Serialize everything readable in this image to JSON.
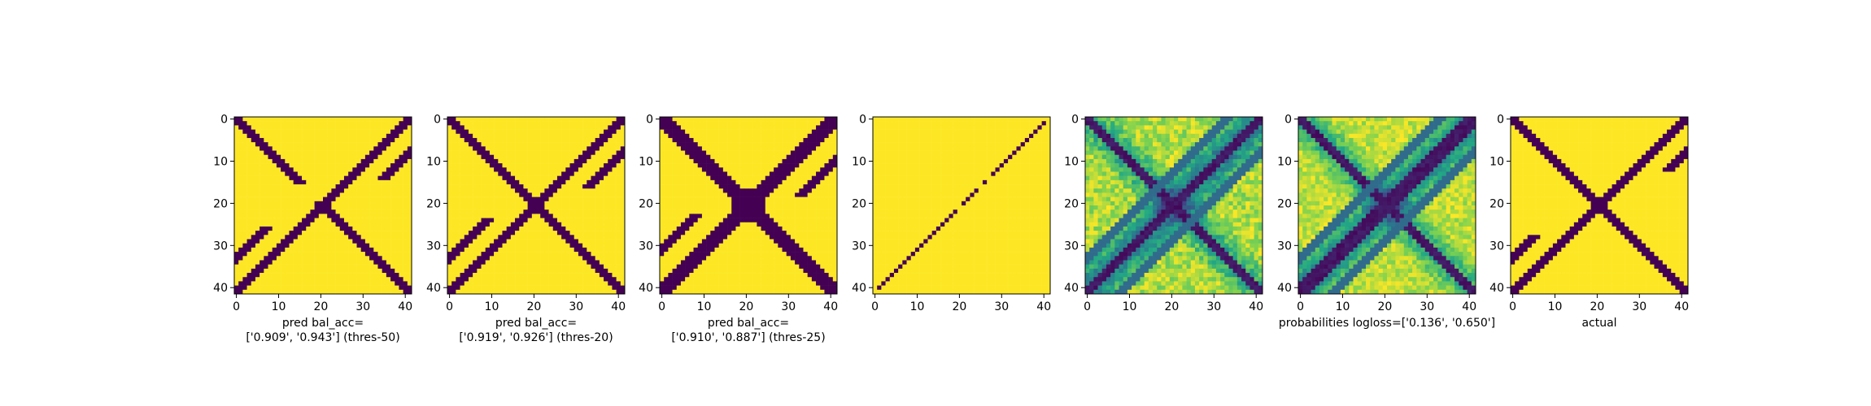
{
  "colors": {
    "low": "#440154",
    "high": "#fde725",
    "viridis": [
      "#440154",
      "#414487",
      "#2a788e",
      "#22a884",
      "#7ad151",
      "#fde725"
    ]
  },
  "chart_data": [
    {
      "type": "heatmap",
      "title": "",
      "size": 42,
      "xticks": [
        0,
        10,
        20,
        30,
        40
      ],
      "yticks": [
        0,
        10,
        20,
        30,
        40
      ],
      "xlabel_lines": [
        "pred bal_acc=",
        "['0.909', '0.943'] (thres-50)"
      ],
      "ylabel": "",
      "binary": true,
      "anti_diagonal_width": 2,
      "main_diagonal_width": 2,
      "center_blob": 1,
      "diagonal_gap": [
        16,
        19
      ],
      "extra_bands": [
        {
          "offset": 4,
          "range": [
            3,
            14
          ]
        },
        {
          "offset": -4,
          "range": [
            26,
            36
          ]
        }
      ],
      "extra_noise": 0.0
    },
    {
      "type": "heatmap",
      "title": "",
      "size": 42,
      "xticks": [
        0,
        10,
        20,
        30,
        40
      ],
      "yticks": [
        0,
        10,
        20,
        30,
        40
      ],
      "xlabel_lines": [
        "pred bal_acc=",
        "['0.919', '0.926'] (thres-20)"
      ],
      "ylabel": "",
      "binary": true,
      "anti_diagonal_width": 2,
      "main_diagonal_width": 2,
      "center_blob": 2,
      "diagonal_gap": [],
      "extra_bands": [
        {
          "offset": 4,
          "range": [
            0,
            16
          ]
        },
        {
          "offset": -4,
          "range": [
            24,
            40
          ]
        }
      ],
      "extra_noise": 0.0
    },
    {
      "type": "heatmap",
      "title": "",
      "size": 42,
      "xticks": [
        0,
        10,
        20,
        30,
        40
      ],
      "yticks": [
        0,
        10,
        20,
        30,
        40
      ],
      "xlabel_lines": [
        "pred bal_acc=",
        "['0.910', '0.887'] (thres-25)"
      ],
      "ylabel": "",
      "binary": true,
      "anti_diagonal_width": 3,
      "main_diagonal_width": 3,
      "center_blob": 4,
      "diagonal_gap": [],
      "extra_bands": [
        {
          "offset": 5,
          "range": [
            0,
            18
          ]
        },
        {
          "offset": -5,
          "range": [
            23,
            41
          ]
        }
      ],
      "extra_noise": 0.0
    },
    {
      "type": "heatmap",
      "title": "",
      "size": 42,
      "xticks": [
        0,
        10,
        20,
        30,
        40
      ],
      "yticks": [
        0,
        10,
        20,
        30,
        40
      ],
      "xlabel_lines": [],
      "ylabel": "",
      "binary": true,
      "anti_diagonal_only_points": [
        1,
        2,
        3,
        4,
        5,
        6,
        7,
        8,
        9,
        10,
        11,
        12,
        13,
        15,
        17,
        18,
        19,
        20,
        22,
        23,
        24,
        25,
        26,
        27,
        28,
        29,
        30,
        31,
        32,
        33,
        34,
        35,
        36,
        37,
        38,
        39,
        40
      ],
      "anti_diagonal_width": 0,
      "main_diagonal_width": 0,
      "center_blob": 0,
      "diagonal_gap": [],
      "extra_bands": [],
      "extra_noise": 0.0
    },
    {
      "type": "heatmap",
      "title": "",
      "size": 42,
      "xticks": [
        0,
        10,
        20,
        30,
        40
      ],
      "yticks": [
        0,
        10,
        20,
        30,
        40
      ],
      "xlabel_lines": [],
      "ylabel": "",
      "binary": false,
      "anti_diagonal_width": 2,
      "main_diagonal_width": 2,
      "center_blob": 2,
      "diagonal_gap": [],
      "extra_bands": [
        {
          "offset": 4,
          "range": [
            0,
            41
          ]
        },
        {
          "offset": -4,
          "range": [
            0,
            41
          ]
        }
      ],
      "extra_noise": 0.25
    },
    {
      "type": "heatmap",
      "title": "",
      "size": 42,
      "xticks": [
        0,
        10,
        20,
        30,
        40
      ],
      "yticks": [
        0,
        10,
        20,
        30,
        40
      ],
      "xlabel_lines": [
        "probabilities logloss=['0.136', '0.650']"
      ],
      "ylabel": "",
      "binary": false,
      "anti_diagonal_width": 3,
      "main_diagonal_width": 2,
      "center_blob": 2,
      "diagonal_gap": [],
      "extra_bands": [
        {
          "offset": 4,
          "range": [
            0,
            41
          ]
        },
        {
          "offset": -4,
          "range": [
            0,
            41
          ]
        }
      ],
      "extra_noise": 0.2
    },
    {
      "type": "heatmap",
      "title": "",
      "size": 42,
      "xticks": [
        0,
        10,
        20,
        30,
        40
      ],
      "yticks": [
        0,
        10,
        20,
        30,
        40
      ],
      "xlabel_lines": [
        "actual"
      ],
      "ylabel": "",
      "binary": true,
      "anti_diagonal_width": 2,
      "main_diagonal_width": 2,
      "center_blob": 1,
      "diagonal_gap": [],
      "extra_bands": [
        {
          "offset": 4,
          "range": [
            2,
            12
          ]
        },
        {
          "offset": -4,
          "range": [
            28,
            38
          ]
        }
      ],
      "extra_noise": 0.0
    }
  ]
}
